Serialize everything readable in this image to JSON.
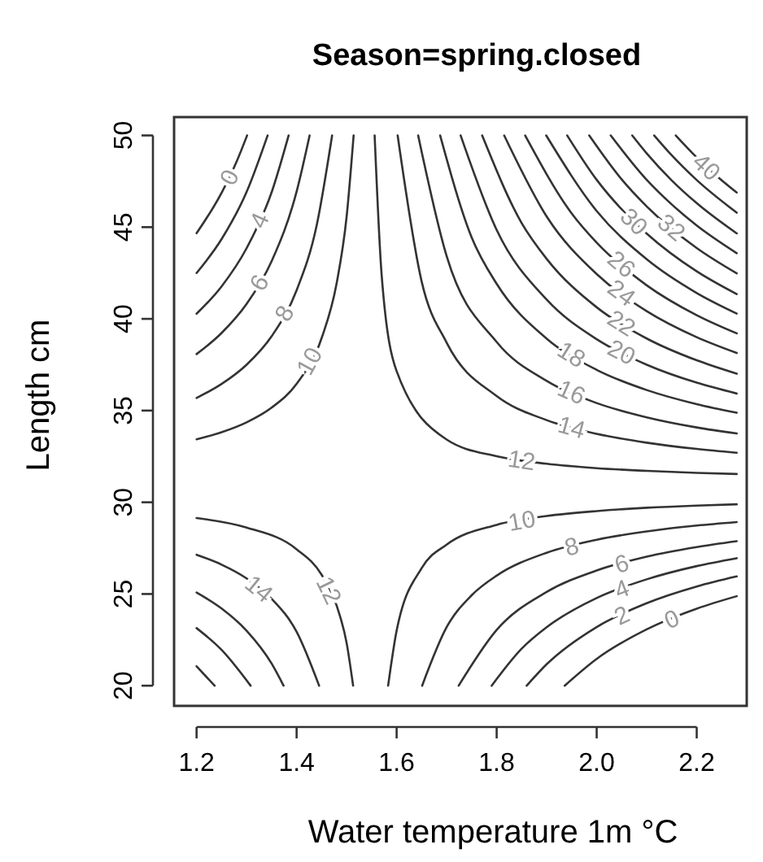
{
  "chart_data": {
    "type": "line",
    "title": "Season=spring.closed",
    "xlabel": "Water temperature 1m °C",
    "ylabel": "Length cm",
    "xlim": [
      1.155,
      2.3
    ],
    "ylim": [
      18.9,
      51
    ],
    "xticks": [
      1.2,
      1.4,
      1.6,
      1.8,
      {
        "value": 2,
        "label": "2.0"
      },
      2.2
    ],
    "yticks": [
      20,
      25,
      30,
      35,
      40,
      45,
      50
    ],
    "grid": false,
    "marker": "none",
    "line_style": "solid",
    "series": [
      {
        "name": "0",
        "color": "#333333",
        "x": [
          1.2,
          1.25,
          1.28,
          1.301
        ],
        "values": [
          44.67,
          46.87,
          48.57,
          50
        ]
      },
      {
        "color": "#333333",
        "x": [
          1.2,
          1.25,
          1.3,
          1.342
        ],
        "values": [
          42.5,
          44.35,
          46.92,
          50
        ]
      },
      {
        "name": "4",
        "color": "#333333",
        "x": [
          1.2,
          1.25,
          1.3,
          1.35,
          1.384
        ],
        "values": [
          40.28,
          41.77,
          43.85,
          46.9,
          50
        ]
      },
      {
        "name": "6",
        "color": "#333333",
        "x": [
          1.2,
          1.25,
          1.3,
          1.35,
          1.4,
          1.426
        ],
        "values": [
          38.08,
          39.23,
          40.81,
          43.14,
          46.94,
          50
        ]
      },
      {
        "name": "8",
        "color": "#333333",
        "x": [
          1.2,
          1.25,
          1.3,
          1.35,
          1.4,
          1.44,
          1.471
        ],
        "values": [
          35.69,
          36.45,
          37.5,
          39.05,
          41.56,
          45.08,
          50
        ]
      },
      {
        "name": "10",
        "color": "#333333",
        "x": [
          1.2,
          1.25,
          1.3,
          1.35,
          1.4,
          1.45,
          1.48,
          1.5,
          1.514
        ],
        "values": [
          33.43,
          33.82,
          34.36,
          35.16,
          36.46,
          38.95,
          41.93,
          45.57,
          50
        ]
      },
      {
        "name": "12",
        "color": "#333333",
        "x": [
          1.556,
          1.57,
          1.6,
          1.7,
          1.8,
          1.9,
          2.0,
          2.1,
          2.2,
          2.28
        ],
        "values": [
          50,
          42.4,
          37.15,
          33.42,
          32.51,
          32.1,
          31.86,
          31.71,
          31.6,
          31.54
        ]
      },
      {
        "name": "14",
        "color": "#333333",
        "x": [
          1.602,
          1.65,
          1.7,
          1.8,
          1.9,
          2.0,
          2.1,
          2.2,
          2.28
        ],
        "values": [
          50,
          42.04,
          38.7,
          35.79,
          34.48,
          33.73,
          33.25,
          32.91,
          32.7
        ]
      },
      {
        "name": "16",
        "color": "#333333",
        "x": [
          1.643,
          1.7,
          1.8,
          1.9,
          2.0,
          2.1,
          2.2,
          2.28
        ],
        "values": [
          50,
          43.42,
          38.74,
          36.62,
          35.41,
          34.63,
          34.08,
          33.75
        ]
      },
      {
        "name": "18",
        "color": "#333333",
        "x": [
          1.687,
          1.75,
          1.8,
          1.9,
          2.0,
          2.1,
          2.2,
          2.28
        ],
        "values": [
          50,
          44.44,
          41.91,
          38.92,
          37.22,
          36.12,
          35.35,
          34.88
        ]
      },
      {
        "name": "20",
        "color": "#333333",
        "x": [
          1.728,
          1.8,
          1.9,
          2.0,
          2.1,
          2.2,
          2.28
        ],
        "values": [
          50,
          44.85,
          41.05,
          38.89,
          37.5,
          36.52,
          35.93
        ]
      },
      {
        "name": "22",
        "color": "#333333",
        "x": [
          1.771,
          1.85,
          1.9,
          2.0,
          2.1,
          2.2,
          2.28
        ],
        "values": [
          50,
          45.22,
          43.27,
          40.63,
          38.93,
          37.74,
          37.01
        ]
      },
      {
        "name": "24",
        "color": "#333333",
        "x": [
          1.815,
          1.9,
          2.0,
          2.1,
          2.2,
          2.28
        ],
        "values": [
          50,
          45.58,
          42.44,
          40.42,
          39.0,
          38.14
        ]
      },
      {
        "name": "26",
        "color": "#333333",
        "x": [
          1.857,
          1.95,
          2.0,
          2.1,
          2.2,
          2.28
        ],
        "values": [
          50,
          45.75,
          44.16,
          41.83,
          40.2,
          39.21
        ]
      },
      {
        "color": "#333333",
        "x": [
          1.899,
          2.0,
          2.1,
          2.2,
          2.28
        ],
        "values": [
          50,
          45.88,
          43.25,
          41.41,
          40.29
        ]
      },
      {
        "name": "30",
        "color": "#333333",
        "x": [
          1.941,
          2.0,
          2.05,
          2.1,
          2.2,
          2.28
        ],
        "values": [
          50,
          47.58,
          45.97,
          44.65,
          42.59,
          41.35
        ]
      },
      {
        "name": "32",
        "color": "#333333",
        "x": [
          1.985,
          2.05,
          2.1,
          2.2,
          2.28
        ],
        "values": [
          50,
          47.6,
          46.13,
          43.86,
          42.48
        ]
      },
      {
        "color": "#333333",
        "x": [
          2.028,
          2.1,
          2.15,
          2.2,
          2.28
        ],
        "values": [
          50,
          47.58,
          46.24,
          45.09,
          43.58
        ]
      },
      {
        "color": "#333333",
        "x": [
          2.071,
          2.1,
          2.15,
          2.2,
          2.28
        ],
        "values": [
          50,
          49.02,
          47.55,
          46.31,
          44.66
        ]
      },
      {
        "color": "#333333",
        "x": [
          2.115,
          2.15,
          2.2,
          2.28
        ],
        "values": [
          50,
          48.92,
          47.57,
          45.79
        ]
      },
      {
        "name": "40",
        "color": "#333333",
        "x": [
          2.158,
          2.2,
          2.24,
          2.28
        ],
        "values": [
          50,
          48.8,
          47.79,
          46.89
        ]
      },
      {
        "name": "12",
        "color": "#333333",
        "x": [
          1.2,
          1.3,
          1.4,
          1.45,
          1.48,
          1.5,
          1.513
        ],
        "values": [
          29.14,
          28.62,
          27.44,
          26.05,
          24.37,
          22.33,
          20
        ]
      },
      {
        "name": "14",
        "color": "#333333",
        "x": [
          1.2,
          1.25,
          1.3,
          1.35,
          1.4,
          1.445
        ],
        "values": [
          27.14,
          26.6,
          25.85,
          24.74,
          22.94,
          20
        ]
      },
      {
        "color": "#333333",
        "x": [
          1.2,
          1.25,
          1.3,
          1.35,
          1.374
        ],
        "values": [
          25.08,
          24.21,
          23.0,
          21.21,
          20
        ]
      },
      {
        "color": "#333333",
        "x": [
          1.2,
          1.25,
          1.308
        ],
        "values": [
          23.14,
          21.95,
          20
        ]
      },
      {
        "color": "#333333",
        "x": [
          1.2,
          1.236
        ],
        "values": [
          21.06,
          20
        ]
      },
      {
        "name": "10",
        "color": "#333333",
        "x": [
          1.583,
          1.6,
          1.65,
          1.7,
          1.8,
          1.9,
          2.0,
          2.1,
          2.2,
          2.28
        ],
        "values": [
          20,
          23.0,
          26.41,
          27.69,
          28.77,
          29.25,
          29.52,
          29.7,
          29.82,
          29.89
        ]
      },
      {
        "name": "8",
        "color": "#333333",
        "x": [
          1.651,
          1.7,
          1.75,
          1.8,
          1.9,
          2.0,
          2.1,
          2.2,
          2.28
        ],
        "values": [
          20,
          23.19,
          24.93,
          26.0,
          27.25,
          27.96,
          28.41,
          28.73,
          28.92
        ]
      },
      {
        "name": "6",
        "color": "#333333",
        "x": [
          1.724,
          1.8,
          1.9,
          2.0,
          2.1,
          2.2,
          2.28
        ],
        "values": [
          20,
          23.04,
          25.11,
          26.28,
          27.04,
          27.56,
          27.88
        ]
      },
      {
        "name": "4",
        "color": "#333333",
        "x": [
          1.79,
          1.85,
          1.9,
          2.0,
          2.1,
          2.2,
          2.28
        ],
        "values": [
          20,
          22.02,
          23.19,
          24.78,
          25.8,
          26.52,
          26.95
        ]
      },
      {
        "name": "2",
        "color": "#333333",
        "x": [
          1.86,
          1.9,
          2.0,
          2.1,
          2.2,
          2.28
        ],
        "values": [
          20,
          21.17,
          23.2,
          24.5,
          25.41,
          25.96
        ]
      },
      {
        "name": "0",
        "color": "#333333",
        "x": [
          1.936,
          2.0,
          2.1,
          2.2,
          2.28
        ],
        "values": [
          20,
          21.46,
          23.07,
          24.2,
          24.88
        ]
      }
    ]
  }
}
